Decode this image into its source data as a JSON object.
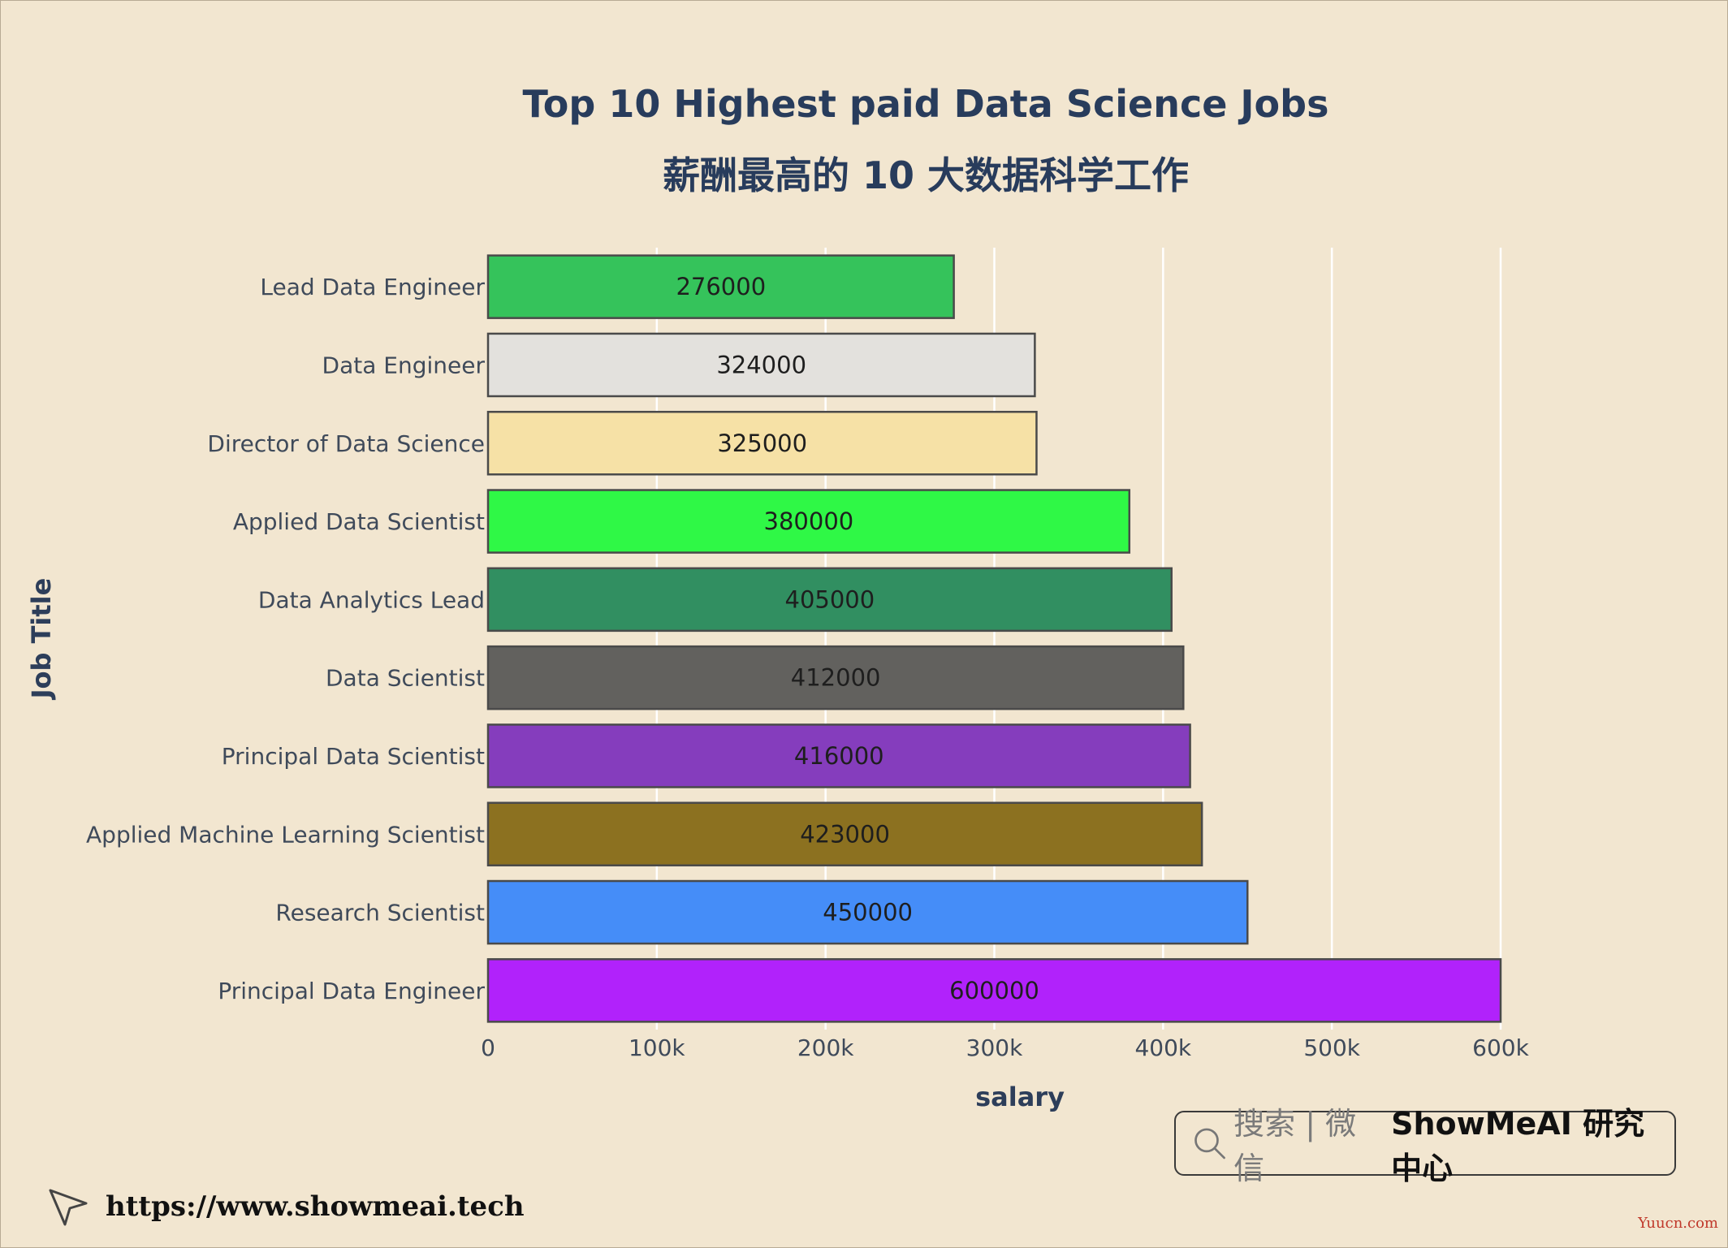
{
  "chart_data": {
    "type": "bar",
    "orientation": "horizontal",
    "title": "Top 10 Highest paid Data Science Jobs",
    "subtitle": "薪酬最高的 10 大数据科学工作",
    "xlabel": "salary",
    "ylabel": "Job Title",
    "xlim": [
      0,
      600000
    ],
    "xticks": [
      {
        "value": 0,
        "label": "0"
      },
      {
        "value": 100000,
        "label": "100k"
      },
      {
        "value": 200000,
        "label": "200k"
      },
      {
        "value": 300000,
        "label": "300k"
      },
      {
        "value": 400000,
        "label": "400k"
      },
      {
        "value": 500000,
        "label": "500k"
      },
      {
        "value": 600000,
        "label": "600k"
      }
    ],
    "grid": "vertical",
    "categories": [
      "Lead Data Engineer",
      "Data Engineer",
      "Director of Data Science",
      "Applied Data Scientist",
      "Data Analytics Lead",
      "Data Scientist",
      "Principal Data Scientist",
      "Applied Machine Learning Scientist",
      "Research Scientist",
      "Principal Data Engineer"
    ],
    "values": [
      276000,
      324000,
      325000,
      380000,
      405000,
      412000,
      416000,
      423000,
      450000,
      600000
    ],
    "data_labels": [
      "276000",
      "324000",
      "325000",
      "380000",
      "405000",
      "412000",
      "416000",
      "423000",
      "450000",
      "600000"
    ],
    "colors": [
      "#35c35b",
      "#e3e1dd",
      "#f6e1a6",
      "#2ff846",
      "#318f61",
      "#62615e",
      "#853dbd",
      "#8c7120",
      "#458df8",
      "#b122fb"
    ]
  },
  "footer": {
    "search_text": "搜索 | 微信",
    "brand": "ShowMeAI 研究中心",
    "url": "https://www.showmeai.tech",
    "watermark": "Yuucn.com"
  }
}
